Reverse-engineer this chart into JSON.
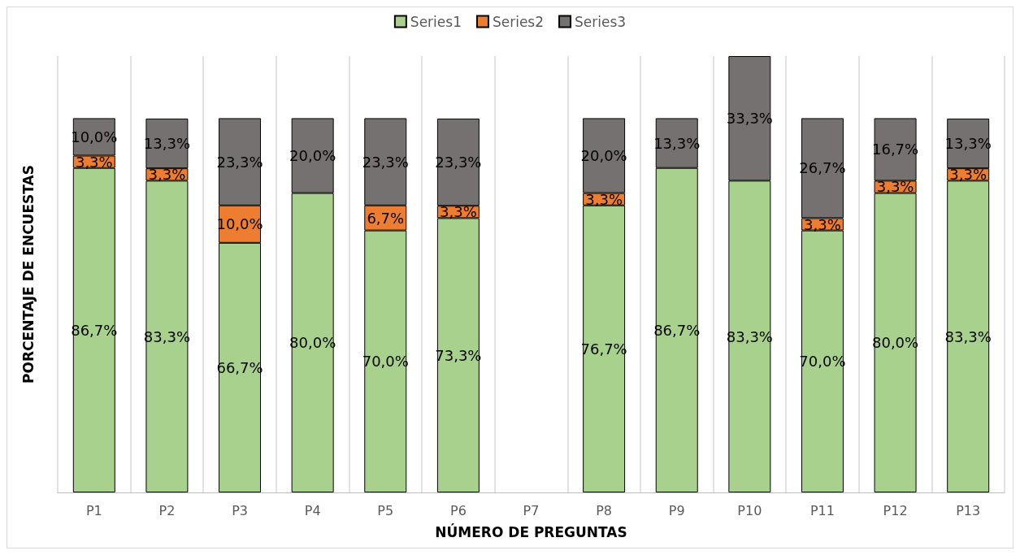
{
  "chart_data": {
    "type": "bar",
    "stacked": true,
    "xlabel": "NÚMERO DE PREGUNTAS",
    "ylabel": "PORCENTAJE DE ENCUESTAS",
    "categories": [
      "P1",
      "P2",
      "P3",
      "P4",
      "P5",
      "P6",
      "P7",
      "P8",
      "P9",
      "P10",
      "P11",
      "P12",
      "P13"
    ],
    "legend": "top",
    "grid": "x",
    "series": [
      {
        "name": "Series1",
        "color": "#a9d18e",
        "values": [
          86.7,
          83.3,
          66.7,
          80.0,
          70.0,
          73.3,
          null,
          76.7,
          86.7,
          83.3,
          70.0,
          80.0,
          83.3
        ],
        "value_labels": [
          "86,7%",
          "83,3%",
          "66,7%",
          "80,0%",
          "70,0%",
          "73,3%",
          null,
          "76,7%",
          "86,7%",
          "83,3%",
          "70,0%",
          "80,0%",
          "83,3%"
        ]
      },
      {
        "name": "Series2",
        "color": "#ed7d31",
        "values": [
          3.3,
          3.3,
          10.0,
          null,
          6.7,
          3.3,
          null,
          3.3,
          null,
          null,
          3.3,
          3.3,
          3.3
        ],
        "value_labels": [
          "3,3%",
          "3,3%",
          "10,0%",
          null,
          "6,7%",
          "3,3%",
          null,
          "3,3%",
          null,
          null,
          "3,3%",
          "3,3%",
          "3,3%"
        ]
      },
      {
        "name": "Series3",
        "color": "#767171",
        "values": [
          10.0,
          13.3,
          23.3,
          20.0,
          23.3,
          23.3,
          null,
          20.0,
          13.3,
          33.3,
          26.7,
          16.7,
          13.3
        ],
        "value_labels": [
          "10,0%",
          "13,3%",
          "23,3%",
          "20,0%",
          "23,3%",
          "23,3%",
          null,
          "20,0%",
          "13,3%",
          "33,3%",
          "26,7%",
          "16,7%",
          "13,3%"
        ]
      }
    ]
  }
}
